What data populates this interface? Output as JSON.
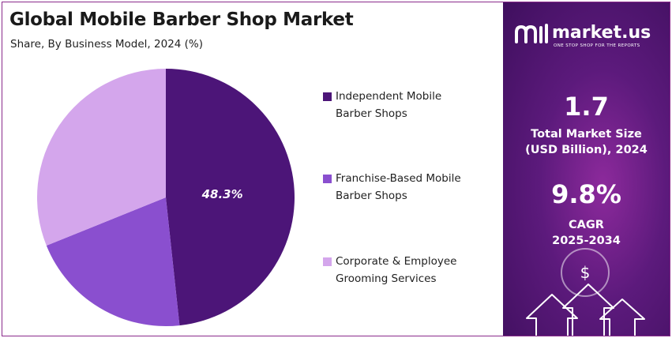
{
  "title": "Global Mobile Barber Shop Market",
  "subtitle": "Share, By Business Model, 2024 (%)",
  "chart_data": {
    "type": "pie",
    "categories": [
      "Independent Mobile Barber Shops",
      "Franchise-Based Mobile Barber Shops",
      "Corporate & Employee Grooming Services"
    ],
    "values": [
      48.3,
      20.6,
      31.1
    ],
    "value_labels": [
      "48.3%",
      "",
      ""
    ],
    "colors": [
      "#4c1578",
      "#8a4fcf",
      "#d4a6ec"
    ],
    "legend_placement": "right"
  },
  "legend": [
    {
      "text": "Independent Mobile\nBarber Shops",
      "color": "#4c1578"
    },
    {
      "text": "Franchise-Based Mobile\nBarber Shops",
      "color": "#8a4fcf"
    },
    {
      "text": "Corporate & Employee\nGrooming Services",
      "color": "#d4a6ec"
    }
  ],
  "brand": {
    "name": "market.us",
    "tagline": "ONE STOP SHOP FOR THE REPORTS"
  },
  "stats": {
    "market_size_value": "1.7",
    "market_size_label_1": "Total Market Size",
    "market_size_label_2": "(USD Billion), 2024",
    "cagr_value": "9.8%",
    "cagr_label_1": "CAGR",
    "cagr_label_2": "2025-2034"
  },
  "icons": [
    "market-us-logo-icon",
    "dollar-icon",
    "arrow-up-icon"
  ],
  "panel_colors": {
    "dark": "#3f0f5e",
    "mid": "#8d2a9c"
  }
}
